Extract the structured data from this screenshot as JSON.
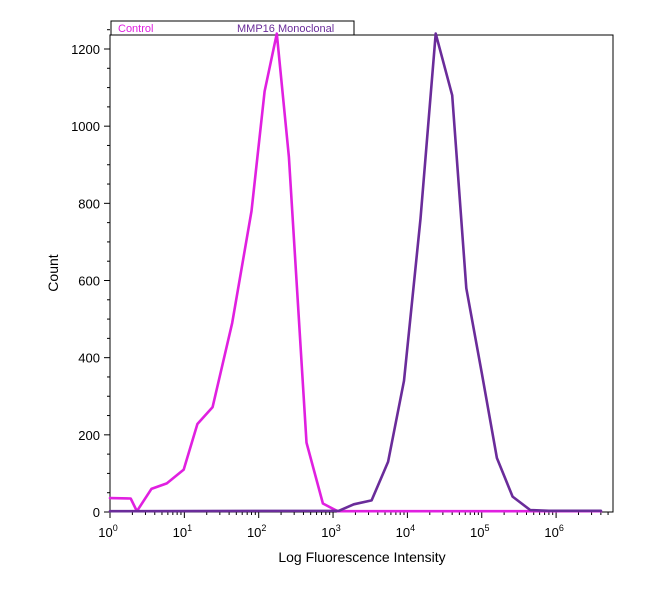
{
  "chart_data": {
    "type": "line",
    "xlabel": "Log Fluorescence Intensity",
    "ylabel": "Count",
    "x_scale": "log",
    "xlim": [
      1,
      5000000
    ],
    "ylim": [
      0,
      1250
    ],
    "x_major_ticks": [
      {
        "value": 1,
        "base": "10",
        "exp": "0"
      },
      {
        "value": 10,
        "base": "10",
        "exp": "1"
      },
      {
        "value": 100,
        "base": "10",
        "exp": "2"
      },
      {
        "value": 1000,
        "base": "10",
        "exp": "3"
      },
      {
        "value": 10000,
        "base": "10",
        "exp": "4"
      },
      {
        "value": 100000,
        "base": "10",
        "exp": "5"
      },
      {
        "value": 1000000,
        "base": "10",
        "exp": "6"
      }
    ],
    "y_ticks": [
      0,
      200,
      400,
      600,
      800,
      1000,
      1200
    ],
    "y_minor_step": 50,
    "grid": false,
    "legend_position": "top-left",
    "series": [
      {
        "name": "Control",
        "color": "#e020e0",
        "points": [
          [
            1,
            36
          ],
          [
            1.9,
            35
          ],
          [
            2.3,
            2
          ],
          [
            3.6,
            60
          ],
          [
            5.8,
            74
          ],
          [
            9.8,
            110
          ],
          [
            15,
            228
          ],
          [
            24,
            272
          ],
          [
            44,
            490
          ],
          [
            80,
            780
          ],
          [
            120,
            1090
          ],
          [
            175,
            1240
          ],
          [
            255,
            920
          ],
          [
            440,
            180
          ],
          [
            730,
            22
          ],
          [
            1150,
            2
          ],
          [
            2000,
            2
          ],
          [
            4000000,
            2
          ]
        ]
      },
      {
        "name": "MMP16 Monoclonal",
        "color": "#6a2c9a",
        "points": [
          [
            1,
            2
          ],
          [
            1200,
            3
          ],
          [
            1900,
            20
          ],
          [
            3300,
            30
          ],
          [
            5500,
            130
          ],
          [
            9000,
            340
          ],
          [
            15000,
            760
          ],
          [
            24000,
            1240
          ],
          [
            40000,
            1080
          ],
          [
            62000,
            580
          ],
          [
            100000,
            360
          ],
          [
            160000,
            140
          ],
          [
            260000,
            40
          ],
          [
            450000,
            5
          ],
          [
            800000,
            3
          ],
          [
            4000000,
            3
          ]
        ]
      }
    ]
  }
}
